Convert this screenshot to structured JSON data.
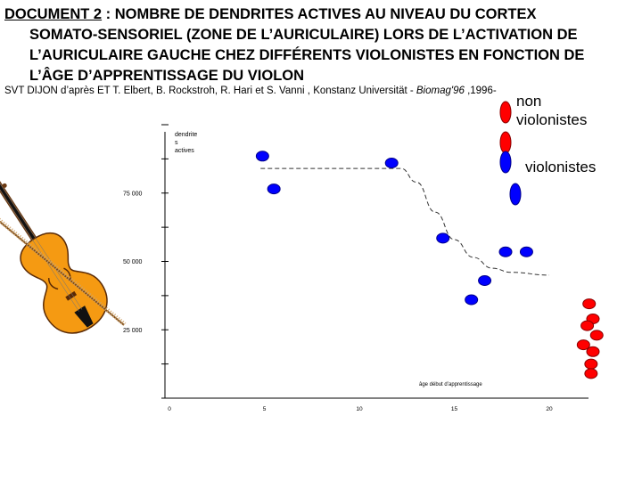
{
  "header": {
    "doc_label": "DOCUMENT 2",
    "title_line1": " : NOMBRE DE DENDRITES ACTIVES AU NIVEAU DU CORTEX",
    "title_line2": "SOMATO-SENSORIEL (ZONE DE L’AURICULAIRE) LORS DE L’ACTIVATION DE",
    "title_line3": "L’AURICULAIRE GAUCHE CHEZ DIFFÉRENTS VIOLONISTES EN FONCTION DE",
    "title_line4": "L’ÂGE D’APPRENTISSAGE DU VIOLON"
  },
  "source": {
    "prefix": "SVT DIJON  d’après ET T. Elbert, B. Rockstroh, R. Hari et S. Vanni , Konstanz Universität - ",
    "journal": "Biomag'96",
    "suffix": " ,1996-"
  },
  "legend": {
    "non_violinists_line1": "non",
    "non_violinists_line2": "violonistes",
    "violinists": "violonistes",
    "colors": {
      "non_violinists": "#ff0000",
      "violinists": "#0000ff"
    }
  },
  "chart_data": {
    "type": "scatter",
    "ylabel_line1": "dendrite",
    "ylabel_line2": "s",
    "ylabel_line3": "actives",
    "xlabel": "âge début d’apprentissage",
    "x_ticks": [
      "0",
      "5",
      "10",
      "15",
      "20"
    ],
    "y_ticks": [
      "25 000",
      "50 000",
      "75 000"
    ],
    "xlim": [
      0,
      20
    ],
    "ylim": [
      0,
      110000
    ],
    "series": [
      {
        "name": "violonistes",
        "color": "#0000ff",
        "points": [
          {
            "x": 4.9,
            "y": 88500
          },
          {
            "x": 5.5,
            "y": 76500
          },
          {
            "x": 11.7,
            "y": 86000
          },
          {
            "x": 14.4,
            "y": 58500
          },
          {
            "x": 15.9,
            "y": 36000
          },
          {
            "x": 16.6,
            "y": 43000
          },
          {
            "x": 17.7,
            "y": 53500
          },
          {
            "x": 18.8,
            "y": 53500
          }
        ]
      },
      {
        "name": "non violonistes",
        "color": "#ff0000",
        "points": [
          {
            "x": 22.1,
            "y": 34500
          },
          {
            "x": 22.3,
            "y": 29000
          },
          {
            "x": 22.0,
            "y": 26500
          },
          {
            "x": 22.5,
            "y": 23000
          },
          {
            "x": 21.8,
            "y": 19500
          },
          {
            "x": 22.3,
            "y": 17000
          },
          {
            "x": 22.2,
            "y": 12500
          },
          {
            "x": 22.2,
            "y": 9000
          }
        ]
      }
    ],
    "trend_line": {
      "style": "dashed",
      "points": [
        {
          "x": 4.8,
          "y": 84000
        },
        {
          "x": 12.2,
          "y": 84000
        },
        {
          "x": 13.0,
          "y": 79000
        },
        {
          "x": 14.0,
          "y": 68000
        },
        {
          "x": 15.0,
          "y": 58000
        },
        {
          "x": 16.0,
          "y": 51500
        },
        {
          "x": 17.0,
          "y": 47500
        },
        {
          "x": 18.0,
          "y": 46000
        },
        {
          "x": 20.0,
          "y": 45000
        }
      ]
    }
  }
}
